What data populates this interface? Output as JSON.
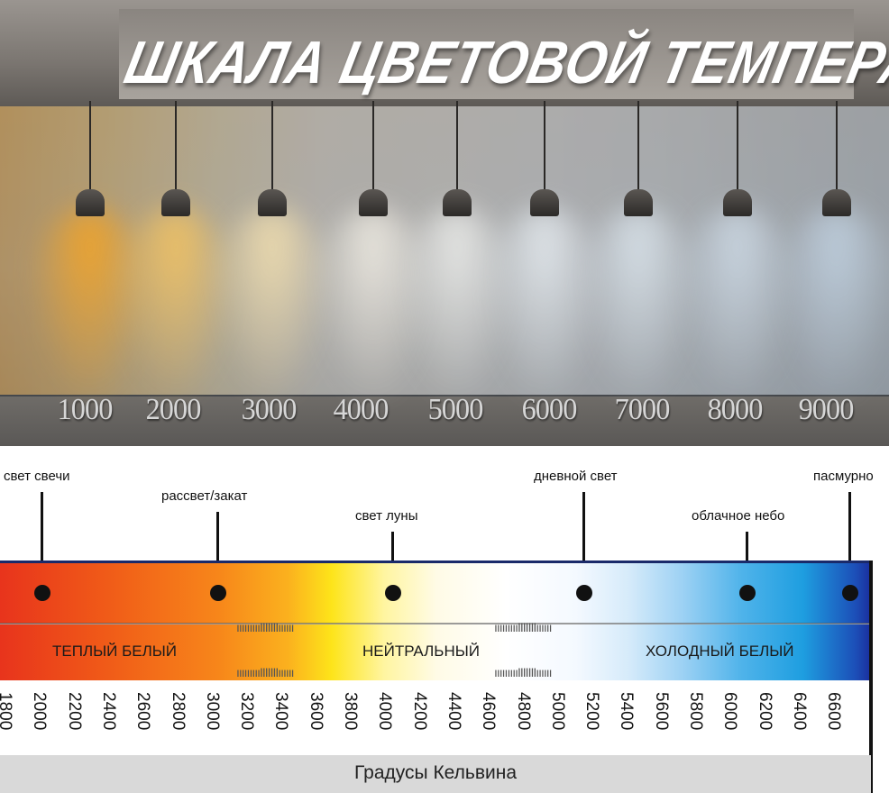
{
  "header": {
    "title": "ШКАЛА ЦВЕТОВОЙ ТЕМПЕРАТУРЫ"
  },
  "photo_scale": [
    "1000",
    "2000",
    "3000",
    "4000",
    "5000",
    "6000",
    "7000",
    "8000",
    "9000"
  ],
  "lamp_colors": [
    "#f7a421",
    "#f8c55e",
    "#f6e2b0",
    "#f3efe6",
    "#eff0ee",
    "#e8eef3",
    "#dde7ef",
    "#cfdce8",
    "#c2d3e3"
  ],
  "light_sources": [
    {
      "label": "свет свечи"
    },
    {
      "label": "рассвет/закат"
    },
    {
      "label": "свет луны"
    },
    {
      "label": "дневной свет"
    },
    {
      "label": "облачное небо"
    },
    {
      "label": "пасмурно"
    }
  ],
  "zones": {
    "warm": "ТЕПЛЫЙ БЕЛЫЙ",
    "neutral": "НЕЙТРАЛЬНЫЙ",
    "cold": "ХОЛОДНЫЙ БЕЛЫЙ"
  },
  "ticks": [
    "1800",
    "2000",
    "2200",
    "2400",
    "2600",
    "2800",
    "3000",
    "3200",
    "3400",
    "3600",
    "3800",
    "4000",
    "4200",
    "4400",
    "4600",
    "4800",
    "5000",
    "5200",
    "5400",
    "5600",
    "5800",
    "6000",
    "6200",
    "6400",
    "6600"
  ],
  "footer": {
    "unit_label": "Градусы Кельвина"
  },
  "colors": {
    "warm": "#e8341c",
    "neutral": "#ffffff",
    "cold": "#1a2a9a"
  }
}
